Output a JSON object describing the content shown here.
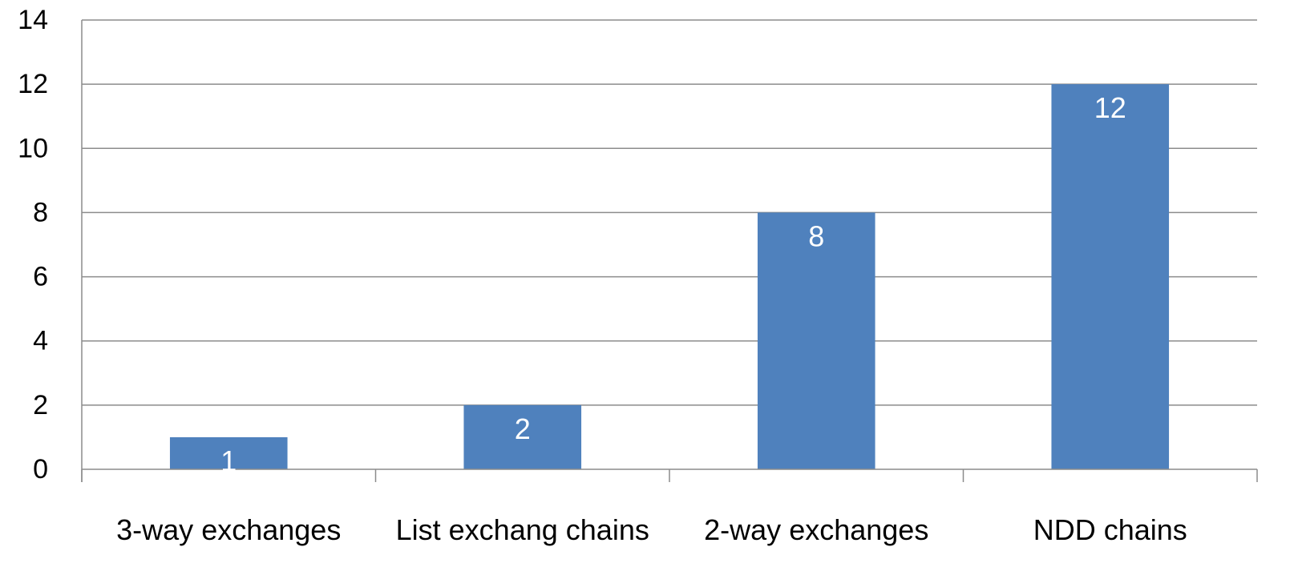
{
  "chart_data": {
    "type": "bar",
    "title": "",
    "xlabel": "",
    "ylabel": "",
    "categories": [
      "3-way exchanges",
      "List exchang chains",
      "2-way exchanges",
      "NDD chains"
    ],
    "values": [
      1,
      2,
      8,
      12
    ],
    "data_labels": [
      "1",
      "2",
      "8",
      "12"
    ],
    "ylim": [
      0,
      14
    ],
    "y_ticks": [
      0,
      2,
      4,
      6,
      8,
      10,
      12,
      14
    ],
    "y_tick_labels": [
      "0",
      "2",
      "4",
      "6",
      "8",
      "10",
      "12",
      "14"
    ],
    "grid": true,
    "legend": "none",
    "colors": {
      "bar": "#4f81bd",
      "grid": "#8c8c8c",
      "axis": "#8c8c8c",
      "data_label": "#ffffff"
    }
  }
}
